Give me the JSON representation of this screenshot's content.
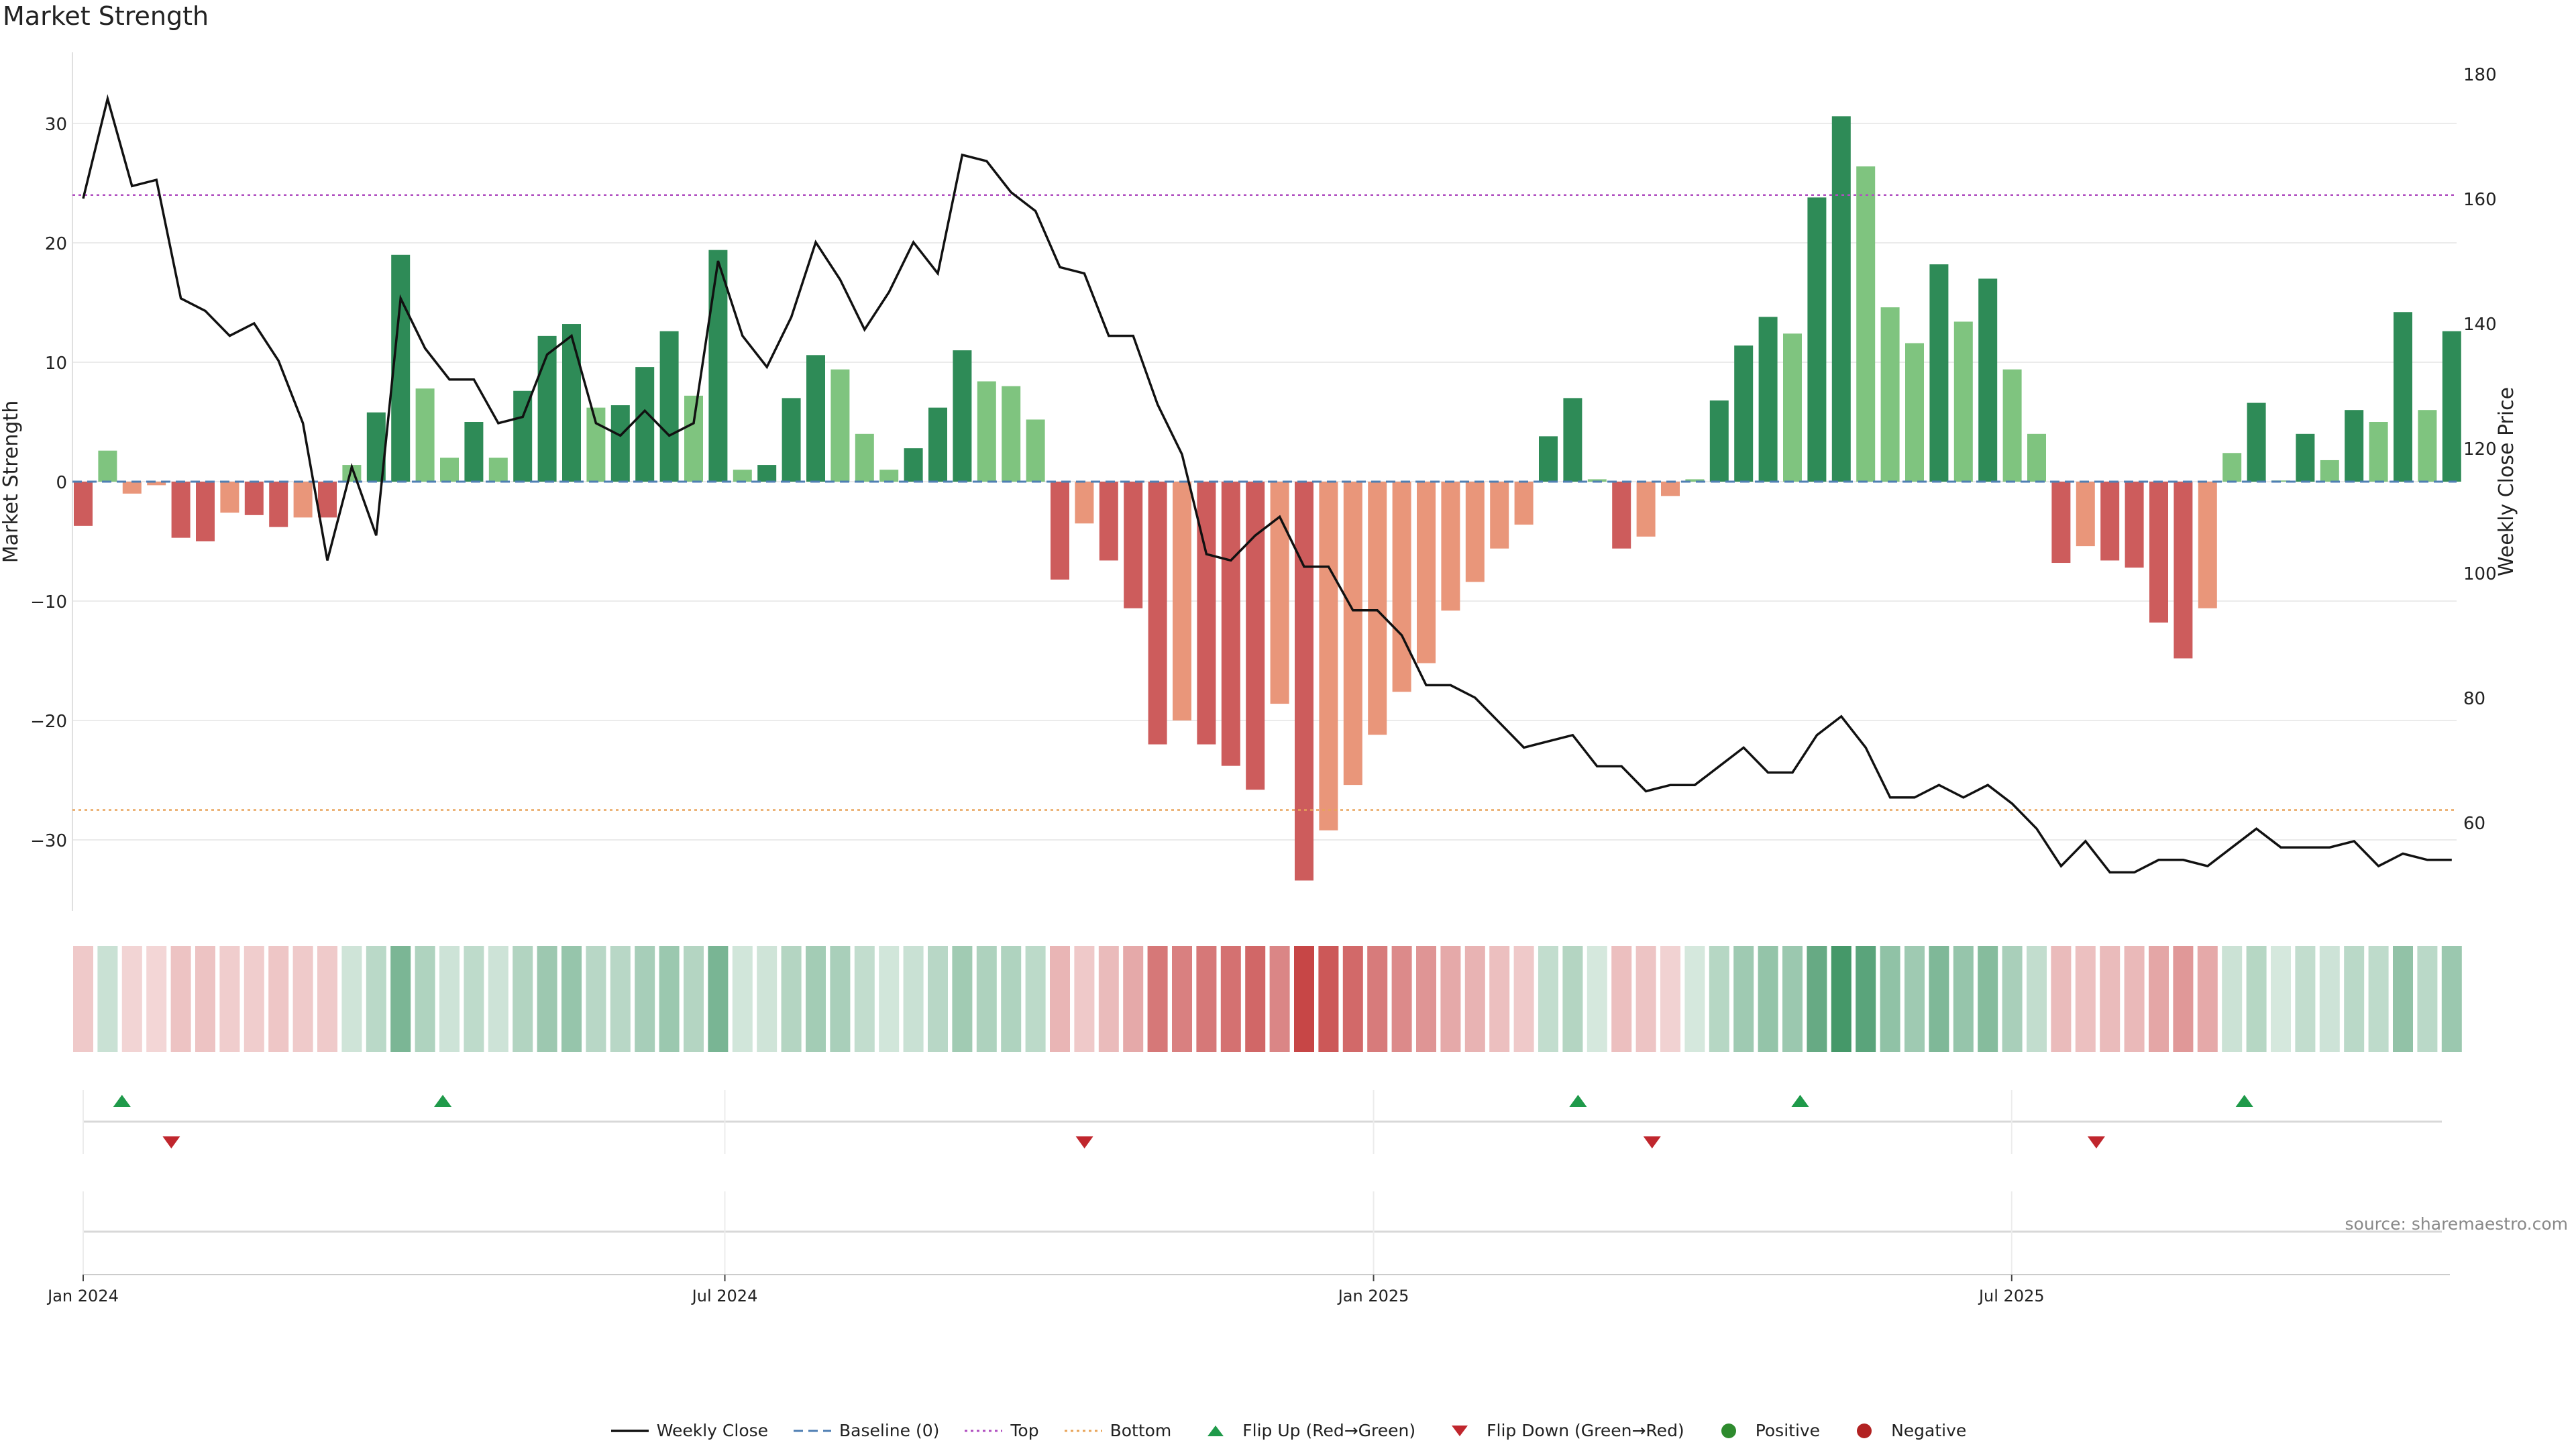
{
  "title": "Market Strength",
  "source": "source: sharemaestro.com",
  "colors": {
    "green_strong": "#2e8b57",
    "green_light": "#7fc47f",
    "red_strong": "#cd5c5c",
    "red_light": "#e9967a",
    "line": "#111111",
    "baseline": "#4f7fb3",
    "top": "#b04fc0",
    "bottom": "#e8a45a",
    "flip_up": "#1f9a4a",
    "flip_down": "#c0262d",
    "positive": "#2e8b2e",
    "negative": "#b22222"
  },
  "legend": [
    {
      "key": "weekly_close",
      "label": "Weekly Close"
    },
    {
      "key": "baseline",
      "label": "Baseline (0)"
    },
    {
      "key": "top",
      "label": "Top"
    },
    {
      "key": "bottom",
      "label": "Bottom"
    },
    {
      "key": "flip_up",
      "label": "Flip Up (Red→Green)"
    },
    {
      "key": "flip_down",
      "label": "Flip Down (Green→Red)"
    },
    {
      "key": "positive",
      "label": "Positive"
    },
    {
      "key": "negative",
      "label": "Negative"
    }
  ],
  "chart_data": {
    "type": "bar",
    "ylabel": "Market Strength",
    "y2label": "Weekly Close Price",
    "ylim": [
      -36,
      36
    ],
    "y2lim": [
      45,
      182
    ],
    "yticks": [
      -30,
      -20,
      -10,
      0,
      10,
      20,
      30
    ],
    "y2ticks": [
      60,
      80,
      100,
      120,
      140,
      160,
      180
    ],
    "top_level": 24,
    "bottom_level": -27.5,
    "baseline": 0,
    "x_range": [
      "2024-01-01",
      "2025-10-31"
    ],
    "xticks": [
      {
        "date": "2024-01-01",
        "label": "Jan 2024"
      },
      {
        "date": "2024-07-01",
        "label": "Jul 2024"
      },
      {
        "date": "2025-01-01",
        "label": "Jan 2025"
      },
      {
        "date": "2025-07-01",
        "label": "Jul 2025"
      }
    ],
    "week_start": "2023-12-29",
    "strength": [
      -3.7,
      2.6,
      -1.0,
      -0.3,
      -4.7,
      -5.0,
      -2.6,
      -2.8,
      -3.8,
      -3.0,
      -3.0,
      1.4,
      5.8,
      19.0,
      7.8,
      2.0,
      5.0,
      2.0,
      7.6,
      12.2,
      13.2,
      6.2,
      6.4,
      9.6,
      12.6,
      7.2,
      19.4,
      1.0,
      1.4,
      7.0,
      10.6,
      9.4,
      4.0,
      1.0,
      2.8,
      6.2,
      11.0,
      8.4,
      8.0,
      5.2,
      -8.2,
      -3.5,
      -6.6,
      -10.6,
      -22.0,
      -20.0,
      -22.0,
      -23.8,
      -25.8,
      -18.6,
      -33.4,
      -29.2,
      -25.4,
      -21.2,
      -17.6,
      -15.2,
      -10.8,
      -8.4,
      -5.6,
      -3.6,
      3.8,
      7.0,
      0.2,
      -5.6,
      -4.6,
      -1.2,
      0.2,
      6.8,
      11.4,
      13.8,
      12.4,
      23.8,
      30.6,
      26.4,
      14.6,
      11.6,
      18.2,
      13.4,
      17.0,
      9.4,
      4.0,
      -6.8,
      -5.4,
      -6.6,
      -7.2,
      -11.8,
      -14.8,
      -10.6,
      2.4,
      6.6,
      0.1,
      4.0,
      1.8,
      6.0,
      5.0,
      14.2,
      6.0,
      12.6
    ],
    "close": [
      160,
      176,
      162,
      163,
      144,
      142,
      138,
      140,
      134,
      124,
      102,
      117,
      106,
      144,
      136,
      131,
      131,
      124,
      125,
      135,
      138,
      124,
      122,
      126,
      122,
      124,
      150,
      138,
      133,
      141,
      153,
      147,
      139,
      145,
      153,
      148,
      167,
      166,
      161,
      158,
      149,
      148,
      138,
      138,
      127,
      119,
      103,
      102,
      106,
      109,
      101,
      101,
      94,
      94,
      90,
      82,
      82,
      80,
      76,
      72,
      73,
      74,
      69,
      69,
      65,
      66,
      66,
      69,
      72,
      68,
      68,
      74,
      77,
      72,
      64,
      64,
      66,
      64,
      66,
      63,
      59,
      53,
      57,
      52,
      52,
      54,
      54,
      53,
      56,
      59,
      56,
      56,
      56,
      57,
      53,
      55,
      54,
      54
    ],
    "flips_up": [
      "2024-01-12",
      "2024-04-12",
      "2025-02-28",
      "2025-05-02",
      "2025-09-05"
    ],
    "flips_down": [
      "2024-01-26",
      "2024-10-11",
      "2025-03-21",
      "2025-07-25"
    ]
  }
}
